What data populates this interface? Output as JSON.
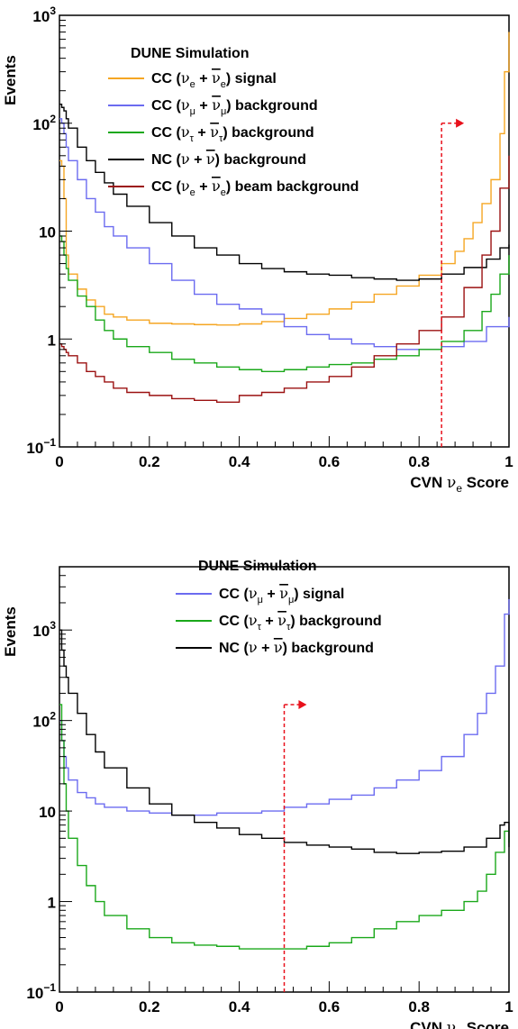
{
  "chart_data": [
    {
      "type": "line",
      "title": "",
      "annotation": "DUNE Simulation",
      "ylabel": "Events",
      "xlabel": {
        "prefix": "CVN ",
        "nu": "ν",
        "sub": "e",
        "suffix": " Score"
      },
      "xlim": [
        0,
        1
      ],
      "ylim": [
        0.1,
        1000
      ],
      "yscale": "log",
      "x_ticks": [
        "0",
        "0.2",
        "0.4",
        "0.6",
        "0.8",
        "1"
      ],
      "y_ticks": [
        {
          "value": 0.1,
          "base": "10",
          "exp": "−1"
        },
        {
          "value": 1,
          "base": "1",
          "exp": ""
        },
        {
          "value": 10,
          "base": "10",
          "exp": ""
        },
        {
          "value": 100,
          "base": "10",
          "exp": "2"
        },
        {
          "value": 1000,
          "base": "10",
          "exp": "3"
        }
      ],
      "grid": false,
      "legend_position": "top-left",
      "cut": {
        "x": 0.85,
        "y": 100,
        "arrow_to": 0.9,
        "color": "#e8101b"
      },
      "series": [
        {
          "legend": {
            "pre": "CC (",
            "f": "ν",
            "fs": "e",
            "post": ") signal"
          },
          "color": "#f5a623",
          "x": [
            0,
            0.005,
            0.01,
            0.015,
            0.02,
            0.04,
            0.06,
            0.08,
            0.1,
            0.12,
            0.15,
            0.2,
            0.25,
            0.3,
            0.35,
            0.4,
            0.45,
            0.5,
            0.55,
            0.6,
            0.65,
            0.7,
            0.75,
            0.8,
            0.85,
            0.88,
            0.9,
            0.92,
            0.94,
            0.96,
            0.98,
            0.99,
            1.0
          ],
          "values": [
            45,
            40,
            20,
            6,
            4,
            2.9,
            2.3,
            2.0,
            1.7,
            1.6,
            1.5,
            1.4,
            1.38,
            1.36,
            1.35,
            1.38,
            1.45,
            1.55,
            1.7,
            1.9,
            2.2,
            2.6,
            3.1,
            3.9,
            5.0,
            6.5,
            8.5,
            12,
            18,
            30,
            80,
            300,
            700
          ]
        },
        {
          "legend": {
            "pre": "CC (",
            "f": "ν",
            "fs": "μ",
            "post": ") background"
          },
          "color": "#6b6bf0",
          "x": [
            0,
            0.005,
            0.01,
            0.015,
            0.02,
            0.04,
            0.06,
            0.08,
            0.1,
            0.12,
            0.15,
            0.2,
            0.25,
            0.3,
            0.35,
            0.4,
            0.45,
            0.5,
            0.55,
            0.6,
            0.65,
            0.7,
            0.75,
            0.8,
            0.85,
            0.9,
            0.95,
            1.0
          ],
          "values": [
            110,
            100,
            80,
            60,
            45,
            30,
            20,
            15,
            11,
            9,
            7,
            5,
            3.5,
            2.6,
            2.1,
            1.9,
            1.7,
            1.3,
            1.1,
            1.0,
            0.9,
            0.85,
            0.8,
            0.8,
            0.85,
            0.95,
            1.3,
            1.6
          ]
        },
        {
          "legend": {
            "pre": "CC (",
            "f": "ν",
            "fs": "τ",
            "post": ") background"
          },
          "color": "#1aa81a",
          "x": [
            0,
            0.005,
            0.01,
            0.015,
            0.02,
            0.04,
            0.06,
            0.08,
            0.1,
            0.12,
            0.15,
            0.2,
            0.25,
            0.3,
            0.35,
            0.4,
            0.45,
            0.5,
            0.55,
            0.6,
            0.65,
            0.7,
            0.75,
            0.8,
            0.85,
            0.9,
            0.94,
            0.96,
            0.98,
            1.0
          ],
          "values": [
            9,
            8,
            6,
            4.5,
            3.5,
            2.5,
            2.0,
            1.5,
            1.2,
            1.0,
            0.85,
            0.75,
            0.65,
            0.6,
            0.55,
            0.52,
            0.5,
            0.52,
            0.55,
            0.58,
            0.6,
            0.65,
            0.7,
            0.8,
            0.95,
            1.2,
            1.8,
            2.6,
            4.0,
            6.0
          ]
        },
        {
          "legend": {
            "pre": "NC (",
            "f": "ν",
            "fs": "",
            "post": ") background"
          },
          "color": "#000000",
          "x": [
            0,
            0.005,
            0.01,
            0.015,
            0.02,
            0.04,
            0.06,
            0.08,
            0.1,
            0.12,
            0.15,
            0.2,
            0.25,
            0.3,
            0.35,
            0.4,
            0.45,
            0.5,
            0.55,
            0.6,
            0.65,
            0.7,
            0.75,
            0.8,
            0.85,
            0.9,
            0.95,
            0.98,
            1.0
          ],
          "values": [
            150,
            140,
            130,
            110,
            90,
            60,
            45,
            35,
            28,
            22,
            17,
            12,
            9,
            7,
            6,
            5,
            4.5,
            4.2,
            4.0,
            3.9,
            3.7,
            3.6,
            3.5,
            3.6,
            4.0,
            4.6,
            5.5,
            7.0,
            7.5
          ]
        },
        {
          "legend": {
            "pre": "CC (",
            "f": "ν",
            "fs": "e",
            "post": ") beam background"
          },
          "color": "#9b1111",
          "x": [
            0,
            0.005,
            0.01,
            0.015,
            0.02,
            0.04,
            0.06,
            0.08,
            0.1,
            0.12,
            0.15,
            0.2,
            0.25,
            0.3,
            0.35,
            0.4,
            0.45,
            0.5,
            0.55,
            0.6,
            0.65,
            0.7,
            0.75,
            0.8,
            0.85,
            0.9,
            0.94,
            0.96,
            0.98,
            1.0
          ],
          "values": [
            0.9,
            0.85,
            0.8,
            0.75,
            0.7,
            0.6,
            0.5,
            0.45,
            0.4,
            0.35,
            0.32,
            0.3,
            0.28,
            0.27,
            0.26,
            0.3,
            0.32,
            0.35,
            0.4,
            0.45,
            0.55,
            0.7,
            0.9,
            1.2,
            1.6,
            3.0,
            6.0,
            10,
            25,
            50
          ]
        }
      ]
    },
    {
      "type": "line",
      "title": "",
      "annotation": "DUNE Simulation",
      "ylabel": "Events",
      "xlabel": {
        "prefix": "CVN ",
        "nu": "ν",
        "sub": "μ",
        "suffix": " Score"
      },
      "xlim": [
        0,
        1
      ],
      "ylim": [
        0.1,
        5000
      ],
      "yscale": "log",
      "x_ticks": [
        "0",
        "0.2",
        "0.4",
        "0.6",
        "0.8",
        "1"
      ],
      "y_ticks": [
        {
          "value": 0.1,
          "base": "10",
          "exp": "−1"
        },
        {
          "value": 1,
          "base": "1",
          "exp": ""
        },
        {
          "value": 10,
          "base": "10",
          "exp": ""
        },
        {
          "value": 100,
          "base": "10",
          "exp": "2"
        },
        {
          "value": 1000,
          "base": "10",
          "exp": "3"
        }
      ],
      "grid": false,
      "legend_position": "top-center",
      "cut": {
        "x": 0.5,
        "y": 150,
        "arrow_to": 0.55,
        "color": "#e8101b"
      },
      "series": [
        {
          "legend": {
            "pre": "CC (",
            "f": "ν",
            "fs": "μ",
            "post": ") signal"
          },
          "color": "#6b6bf0",
          "x": [
            0,
            0.005,
            0.01,
            0.015,
            0.02,
            0.04,
            0.06,
            0.08,
            0.1,
            0.15,
            0.2,
            0.25,
            0.3,
            0.35,
            0.4,
            0.45,
            0.5,
            0.55,
            0.6,
            0.65,
            0.7,
            0.75,
            0.8,
            0.85,
            0.9,
            0.93,
            0.95,
            0.97,
            0.99,
            1.0
          ],
          "values": [
            100,
            60,
            40,
            30,
            22,
            16,
            14,
            12,
            11,
            10,
            9.5,
            9,
            9,
            9.5,
            9.5,
            10,
            11,
            12,
            13.5,
            15,
            18,
            22,
            28,
            40,
            70,
            120,
            200,
            400,
            1500,
            2200
          ]
        },
        {
          "legend": {
            "pre": "CC (",
            "f": "ν",
            "fs": "τ",
            "post": ") background"
          },
          "color": "#1aa81a",
          "x": [
            0,
            0.005,
            0.01,
            0.015,
            0.02,
            0.04,
            0.06,
            0.08,
            0.1,
            0.15,
            0.2,
            0.25,
            0.3,
            0.35,
            0.4,
            0.45,
            0.5,
            0.55,
            0.6,
            0.65,
            0.7,
            0.75,
            0.8,
            0.85,
            0.9,
            0.93,
            0.95,
            0.97,
            0.99,
            1.0
          ],
          "values": [
            150,
            60,
            20,
            10,
            5,
            2.5,
            1.5,
            1.0,
            0.7,
            0.5,
            0.4,
            0.35,
            0.33,
            0.32,
            0.3,
            0.3,
            0.3,
            0.32,
            0.35,
            0.4,
            0.5,
            0.6,
            0.7,
            0.8,
            1.0,
            1.3,
            2.0,
            3.5,
            6.0,
            4.5
          ]
        },
        {
          "legend": {
            "pre": "NC (",
            "f": "ν",
            "fs": "",
            "post": ") background"
          },
          "color": "#000000",
          "x": [
            0,
            0.005,
            0.01,
            0.015,
            0.02,
            0.04,
            0.06,
            0.08,
            0.1,
            0.15,
            0.2,
            0.25,
            0.3,
            0.35,
            0.4,
            0.45,
            0.5,
            0.55,
            0.6,
            0.65,
            0.7,
            0.75,
            0.8,
            0.85,
            0.9,
            0.95,
            0.98,
            0.99,
            1.0
          ],
          "values": [
            1000,
            600,
            400,
            300,
            200,
            120,
            70,
            45,
            30,
            18,
            12,
            9,
            7.5,
            6.5,
            5.5,
            5.0,
            4.5,
            4.2,
            4.0,
            3.8,
            3.5,
            3.4,
            3.5,
            3.6,
            4.0,
            5.0,
            7.0,
            7.5,
            4.0
          ]
        }
      ]
    }
  ]
}
